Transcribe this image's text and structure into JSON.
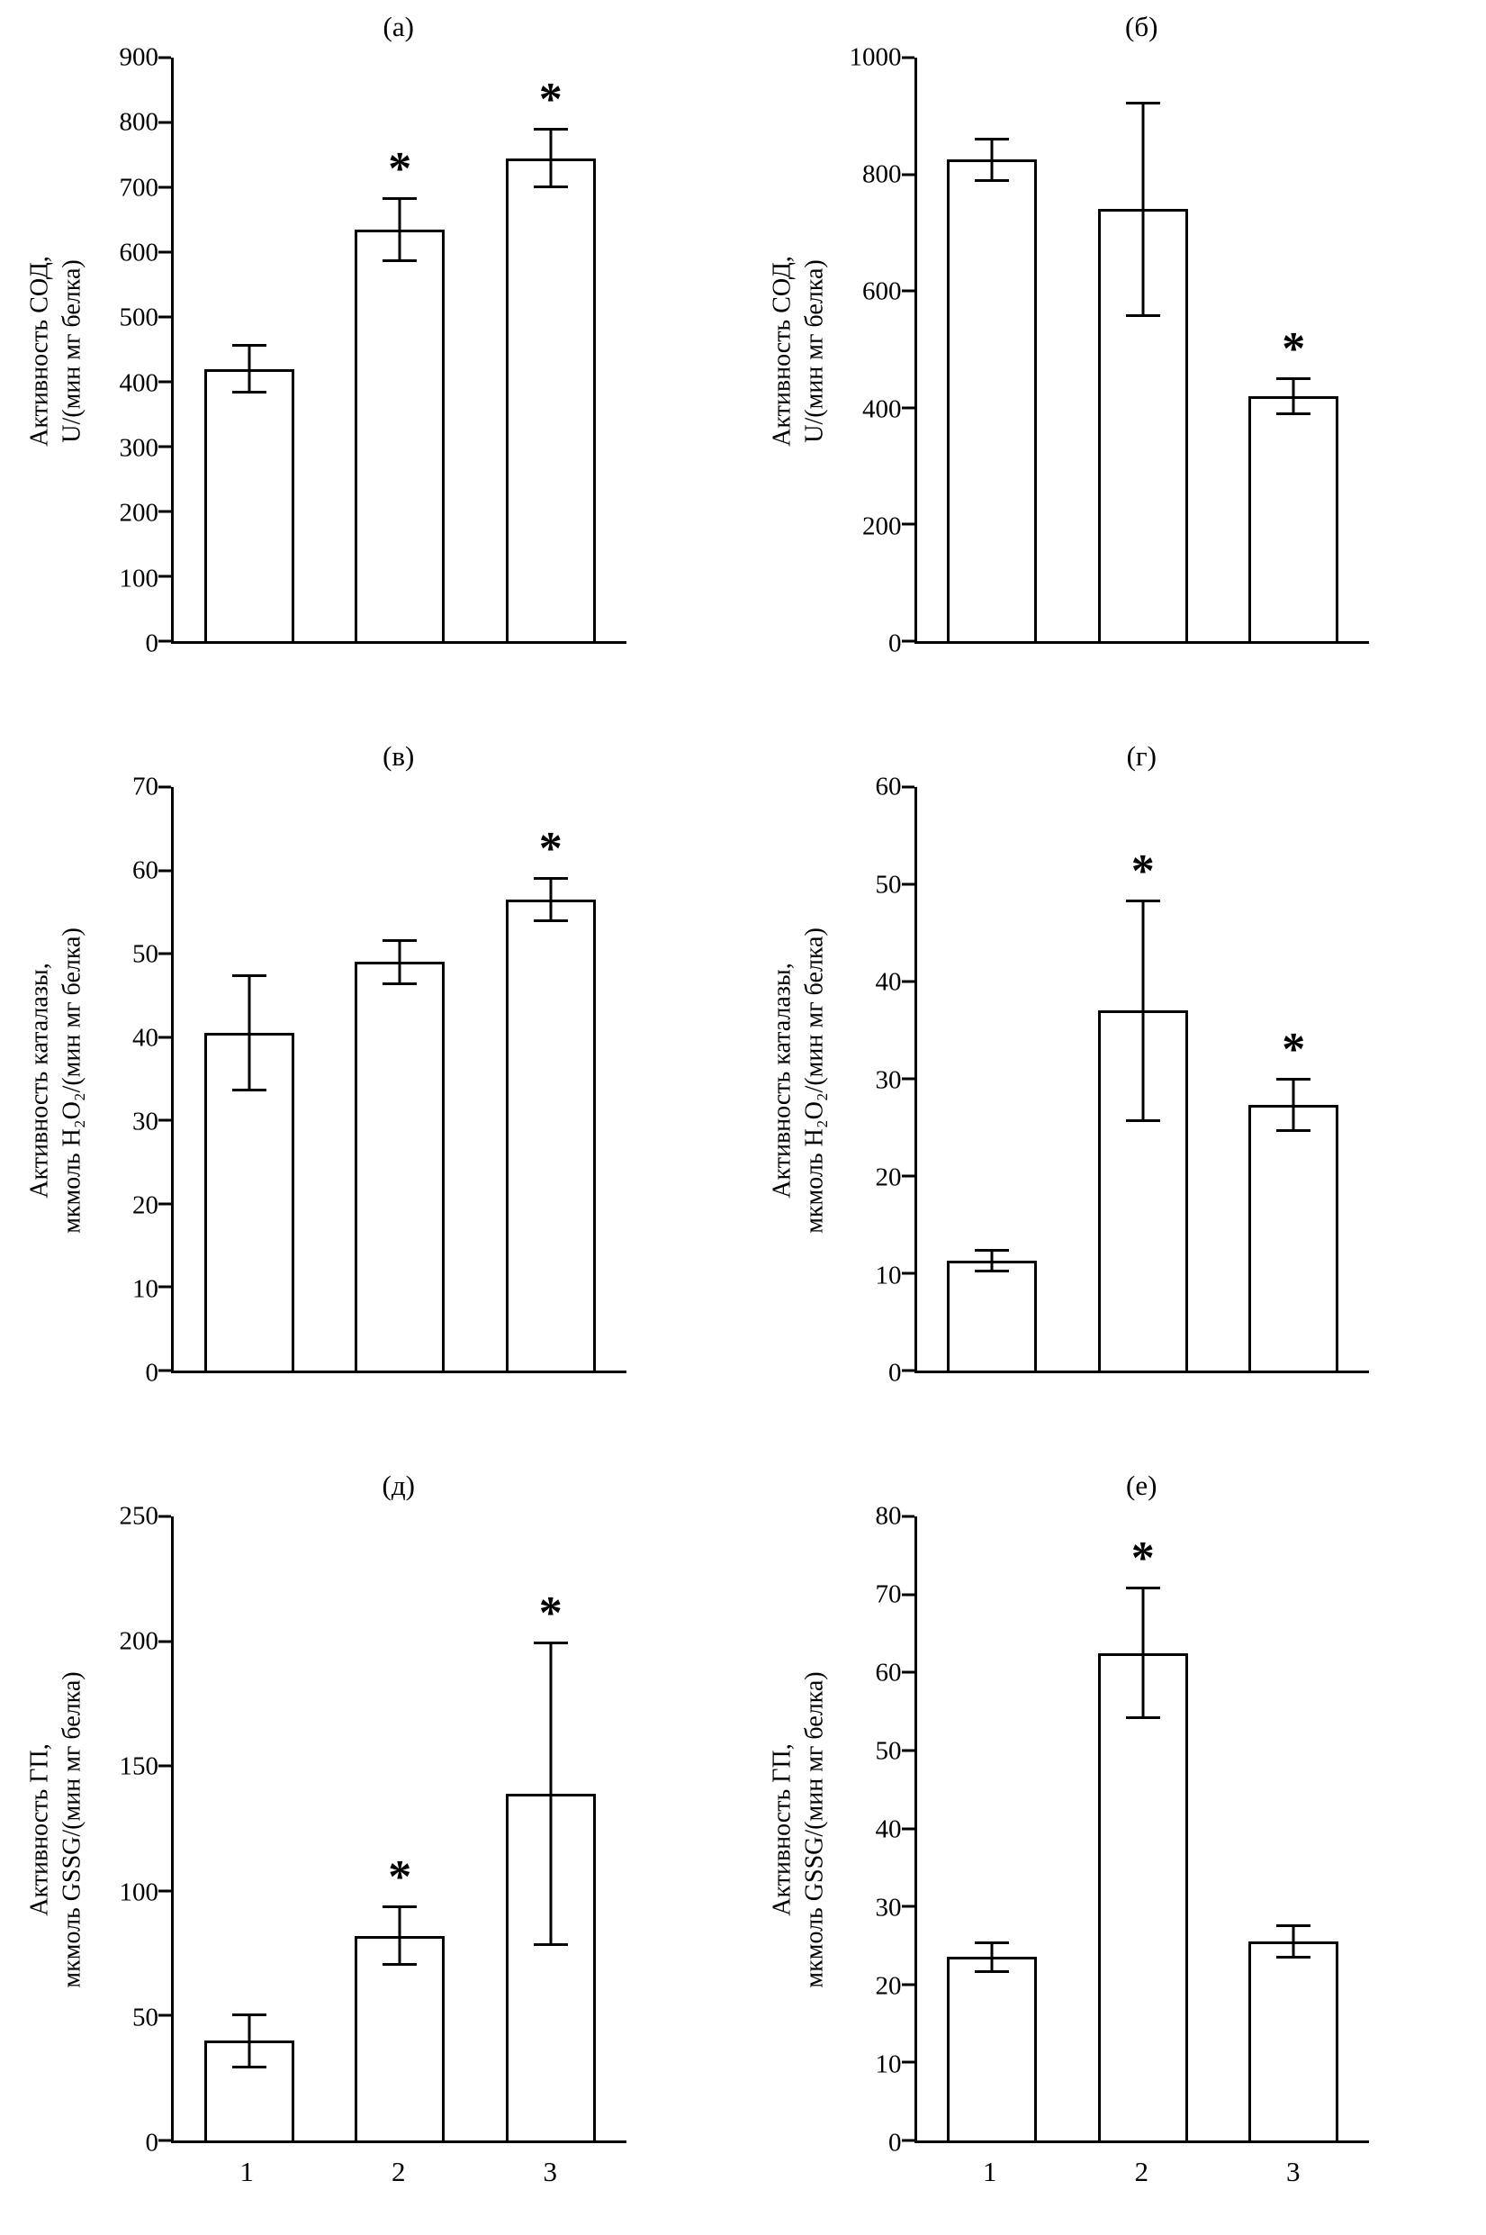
{
  "figure": {
    "background": "#ffffff",
    "stroke_color": "#000000",
    "bar_fill": "#ffffff",
    "significance_marker": "*"
  },
  "chart_data": [
    {
      "type": "bar",
      "title": "(а)",
      "ylabel_line1": "Активность СОД,",
      "ylabel_line2": "U/(мин мг белка)",
      "categories": [
        "1",
        "2",
        "3"
      ],
      "values": [
        420,
        635,
        745
      ],
      "errors": [
        38,
        50,
        47
      ],
      "significant": [
        false,
        true,
        true
      ],
      "ylim": [
        0,
        900
      ],
      "ytick_step": 100,
      "grid": false,
      "show_x_labels": false
    },
    {
      "type": "bar",
      "title": "(б)",
      "ylabel_line1": "Активность СОД,",
      "ylabel_line2": "U/(мин мг белка)",
      "categories": [
        "1",
        "2",
        "3"
      ],
      "values": [
        825,
        740,
        420
      ],
      "errors": [
        38,
        185,
        32
      ],
      "significant": [
        false,
        false,
        true
      ],
      "ylim": [
        0,
        1000
      ],
      "ytick_step": 200,
      "grid": false,
      "show_x_labels": false
    },
    {
      "type": "bar",
      "title": "(в)",
      "ylabel_line1": "Активность каталазы,",
      "ylabel_line2": "мкмоль H₂O₂/(мин мг белка)",
      "categories": [
        "1",
        "2",
        "3"
      ],
      "values": [
        40.5,
        49,
        56.5
      ],
      "errors": [
        7,
        2.8,
        2.7
      ],
      "significant": [
        false,
        false,
        true
      ],
      "ylim": [
        0,
        70
      ],
      "ytick_step": 10,
      "grid": false,
      "show_x_labels": false
    },
    {
      "type": "bar",
      "title": "(г)",
      "ylabel_line1": "Активность каталазы,",
      "ylabel_line2": "мкмоль H₂O₂/(мин мг белка)",
      "categories": [
        "1",
        "2",
        "3"
      ],
      "values": [
        11.3,
        37,
        27.3
      ],
      "errors": [
        1.2,
        11.4,
        2.8
      ],
      "significant": [
        false,
        true,
        true
      ],
      "ylim": [
        0,
        60
      ],
      "ytick_step": 10,
      "grid": false,
      "show_x_labels": false
    },
    {
      "type": "bar",
      "title": "(д)",
      "ylabel_line1": "Активность ГП,",
      "ylabel_line2": "мкмоль GSSG/(мин мг белка)",
      "categories": [
        "1",
        "2",
        "3"
      ],
      "values": [
        40,
        82,
        139
      ],
      "errors": [
        11,
        12,
        61
      ],
      "significant": [
        false,
        true,
        true
      ],
      "ylim": [
        0,
        250
      ],
      "ytick_step": 50,
      "grid": false,
      "show_x_labels": true
    },
    {
      "type": "bar",
      "title": "(е)",
      "ylabel_line1": "Активность ГП,",
      "ylabel_line2": "мкмоль GSSG/(мин мг белка)",
      "categories": [
        "1",
        "2",
        "3"
      ],
      "values": [
        23.5,
        62.5,
        25.5
      ],
      "errors": [
        2,
        8.5,
        2.2
      ],
      "significant": [
        false,
        true,
        false
      ],
      "ylim": [
        0,
        80
      ],
      "ytick_step": 10,
      "grid": false,
      "show_x_labels": true
    }
  ]
}
